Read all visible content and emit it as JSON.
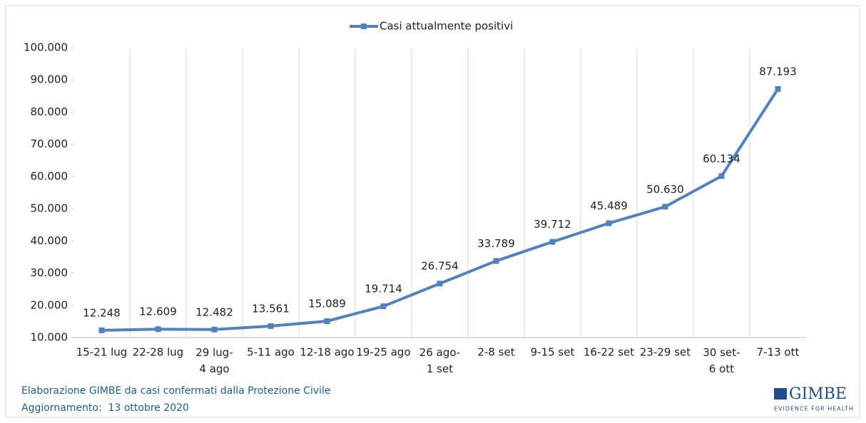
{
  "chart_data": {
    "type": "line",
    "categories": [
      "15-21 lug",
      "22-28 lug",
      "29 lug-\n4 ago",
      "5-11 ago",
      "12-18 ago",
      "19-25 ago",
      "26 ago-\n1 set",
      "2-8 set",
      "9-15 set",
      "16-22 set",
      "23-29 set",
      "30 set-\n6 ott",
      "7-13 ott"
    ],
    "series": [
      {
        "name": "Casi attualmente positivi",
        "color": "#5282bd",
        "values": [
          12248,
          12609,
          12482,
          13561,
          15089,
          19714,
          26754,
          33789,
          39712,
          45489,
          50630,
          60134,
          87193
        ],
        "value_labels": [
          "12.248",
          "12.609",
          "12.482",
          "13.561",
          "15.089",
          "19.714",
          "26.754",
          "33.789",
          "39.712",
          "45.489",
          "50.630",
          "60.134",
          "87.193"
        ]
      }
    ],
    "ylim": [
      10000,
      100000
    ],
    "yticks": [
      {
        "value": 10000,
        "label": "10.000"
      },
      {
        "value": 20000,
        "label": "20.000"
      },
      {
        "value": 30000,
        "label": "30.000"
      },
      {
        "value": 40000,
        "label": "40.000"
      },
      {
        "value": 50000,
        "label": "50.000"
      },
      {
        "value": 60000,
        "label": "60.000"
      },
      {
        "value": 70000,
        "label": "70.000"
      },
      {
        "value": 80000,
        "label": "80.000"
      },
      {
        "value": 90000,
        "label": "90.000"
      },
      {
        "value": 100000,
        "label": "100.000"
      }
    ],
    "legend": "top",
    "source": "Elaborazione GIMBE da casi confermati dalla Protezione Civile",
    "updated": "Aggiornamento:  13 ottobre 2020",
    "logo": "GIMBE",
    "logo_tagline": "EVIDENCE FOR HEALTH"
  }
}
